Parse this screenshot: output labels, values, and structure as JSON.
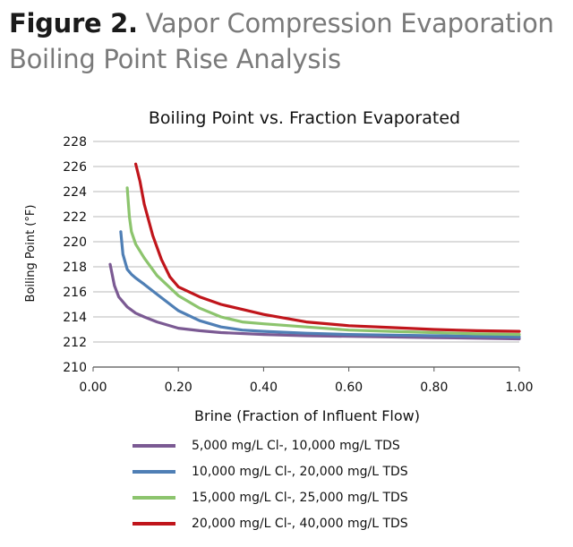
{
  "figure": {
    "label": "Figure 2.",
    "title_line1": "Vapor Compression Evaporation",
    "title_line2": "Boiling Point Rise Analysis"
  },
  "chart_data": {
    "type": "line",
    "title": "Boiling Point vs. Fraction Evaporated",
    "xlabel": "Brine (Fraction of Influent Flow)",
    "ylabel": "Boiling Point (°F)",
    "xlim": [
      0,
      1
    ],
    "ylim": [
      210,
      228
    ],
    "xticks": [
      "0.00",
      "0.20",
      "0.40",
      "0.60",
      "0.80",
      "1.00"
    ],
    "yticks": [
      "210",
      "212",
      "214",
      "216",
      "218",
      "220",
      "222",
      "224",
      "226",
      "228"
    ],
    "grid": "horizontal",
    "legend_position": "bottom",
    "series": [
      {
        "name": "5,000 mg/L Cl-, 10,000 mg/L TDS",
        "color": "#7b5a93",
        "points": [
          [
            0.04,
            218.2
          ],
          [
            0.05,
            216.5
          ],
          [
            0.06,
            215.6
          ],
          [
            0.08,
            214.8
          ],
          [
            0.1,
            214.3
          ],
          [
            0.12,
            214.0
          ],
          [
            0.15,
            213.6
          ],
          [
            0.2,
            213.1
          ],
          [
            0.25,
            212.9
          ],
          [
            0.3,
            212.75
          ],
          [
            0.4,
            212.6
          ],
          [
            0.5,
            212.5
          ],
          [
            0.6,
            212.45
          ],
          [
            0.7,
            212.4
          ],
          [
            0.8,
            212.35
          ],
          [
            0.9,
            212.3
          ],
          [
            1.0,
            212.25
          ]
        ]
      },
      {
        "name": "10,000 mg/L Cl-, 20,000 mg/L TDS",
        "color": "#4f7fb5",
        "points": [
          [
            0.065,
            220.8
          ],
          [
            0.07,
            219.0
          ],
          [
            0.08,
            217.8
          ],
          [
            0.09,
            217.4
          ],
          [
            0.1,
            217.1
          ],
          [
            0.12,
            216.6
          ],
          [
            0.15,
            215.8
          ],
          [
            0.2,
            214.5
          ],
          [
            0.25,
            213.7
          ],
          [
            0.3,
            213.2
          ],
          [
            0.35,
            212.95
          ],
          [
            0.4,
            212.85
          ],
          [
            0.5,
            212.7
          ],
          [
            0.6,
            212.6
          ],
          [
            0.7,
            212.55
          ],
          [
            0.8,
            212.5
          ],
          [
            0.9,
            212.45
          ],
          [
            1.0,
            212.4
          ]
        ]
      },
      {
        "name": "15,000 mg/L Cl-, 25,000 mg/L TDS",
        "color": "#8cc46d",
        "points": [
          [
            0.08,
            224.3
          ],
          [
            0.085,
            222.0
          ],
          [
            0.09,
            220.8
          ],
          [
            0.1,
            219.8
          ],
          [
            0.12,
            218.7
          ],
          [
            0.15,
            217.3
          ],
          [
            0.2,
            215.7
          ],
          [
            0.25,
            214.7
          ],
          [
            0.3,
            214.0
          ],
          [
            0.35,
            213.6
          ],
          [
            0.4,
            213.45
          ],
          [
            0.5,
            213.2
          ],
          [
            0.6,
            212.95
          ],
          [
            0.7,
            212.85
          ],
          [
            0.8,
            212.75
          ],
          [
            0.9,
            212.65
          ],
          [
            1.0,
            212.6
          ]
        ]
      },
      {
        "name": "20,000 mg/L Cl-, 40,000 mg/L TDS",
        "color": "#c0151b",
        "points": [
          [
            0.1,
            226.2
          ],
          [
            0.11,
            224.8
          ],
          [
            0.12,
            223.0
          ],
          [
            0.14,
            220.5
          ],
          [
            0.16,
            218.6
          ],
          [
            0.18,
            217.2
          ],
          [
            0.2,
            216.4
          ],
          [
            0.25,
            215.6
          ],
          [
            0.3,
            215.0
          ],
          [
            0.35,
            214.6
          ],
          [
            0.4,
            214.2
          ],
          [
            0.5,
            213.6
          ],
          [
            0.6,
            213.3
          ],
          [
            0.7,
            213.15
          ],
          [
            0.8,
            213.0
          ],
          [
            0.9,
            212.9
          ],
          [
            1.0,
            212.85
          ]
        ]
      }
    ]
  }
}
